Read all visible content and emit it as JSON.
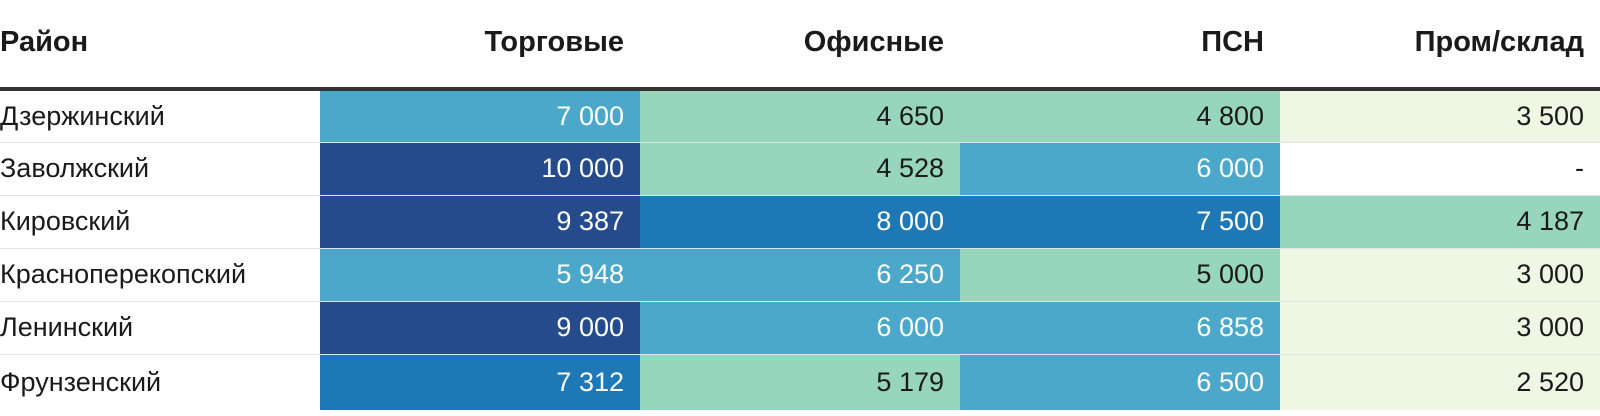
{
  "chart_data": {
    "type": "table",
    "columns": [
      "Район",
      "Торговые",
      "Офисные",
      "ПСН",
      "Пром/склад"
    ],
    "rows": [
      {
        "district": "Дзержинский",
        "values": [
          "7 000",
          "4 650",
          "4 800",
          "3 500"
        ]
      },
      {
        "district": "Заволжский",
        "values": [
          "10 000",
          "4 528",
          "6 000",
          "-"
        ]
      },
      {
        "district": "Кировский",
        "values": [
          "9 387",
          "8 000",
          "7 500",
          "4 187"
        ]
      },
      {
        "district": "Красноперекопский",
        "values": [
          "5 948",
          "6 250",
          "5 000",
          "3 000"
        ]
      },
      {
        "district": "Ленинский",
        "values": [
          "9 000",
          "6 000",
          "6 858",
          "3 000"
        ]
      },
      {
        "district": "Фрунзенский",
        "values": [
          "7 312",
          "5 179",
          "6 500",
          "2 520"
        ]
      }
    ],
    "colors": {
      "darkest": "#254b8c",
      "dark": "#1e78b6",
      "medium": "#4ba8cb",
      "light": "#97d5bf",
      "lightest": "#edf7e4",
      "empty": "#ffffff",
      "text_on_dark": "#ffffff",
      "text_on_light": "#1a1a1a"
    },
    "color_classes": [
      [
        "medium",
        "light",
        "light",
        "lightest"
      ],
      [
        "darkest",
        "light",
        "medium",
        "empty"
      ],
      [
        "darkest",
        "dark",
        "dark",
        "light"
      ],
      [
        "medium",
        "medium",
        "light",
        "lightest"
      ],
      [
        "darkest",
        "medium",
        "medium",
        "lightest"
      ],
      [
        "dark",
        "light",
        "medium",
        "lightest"
      ]
    ]
  }
}
